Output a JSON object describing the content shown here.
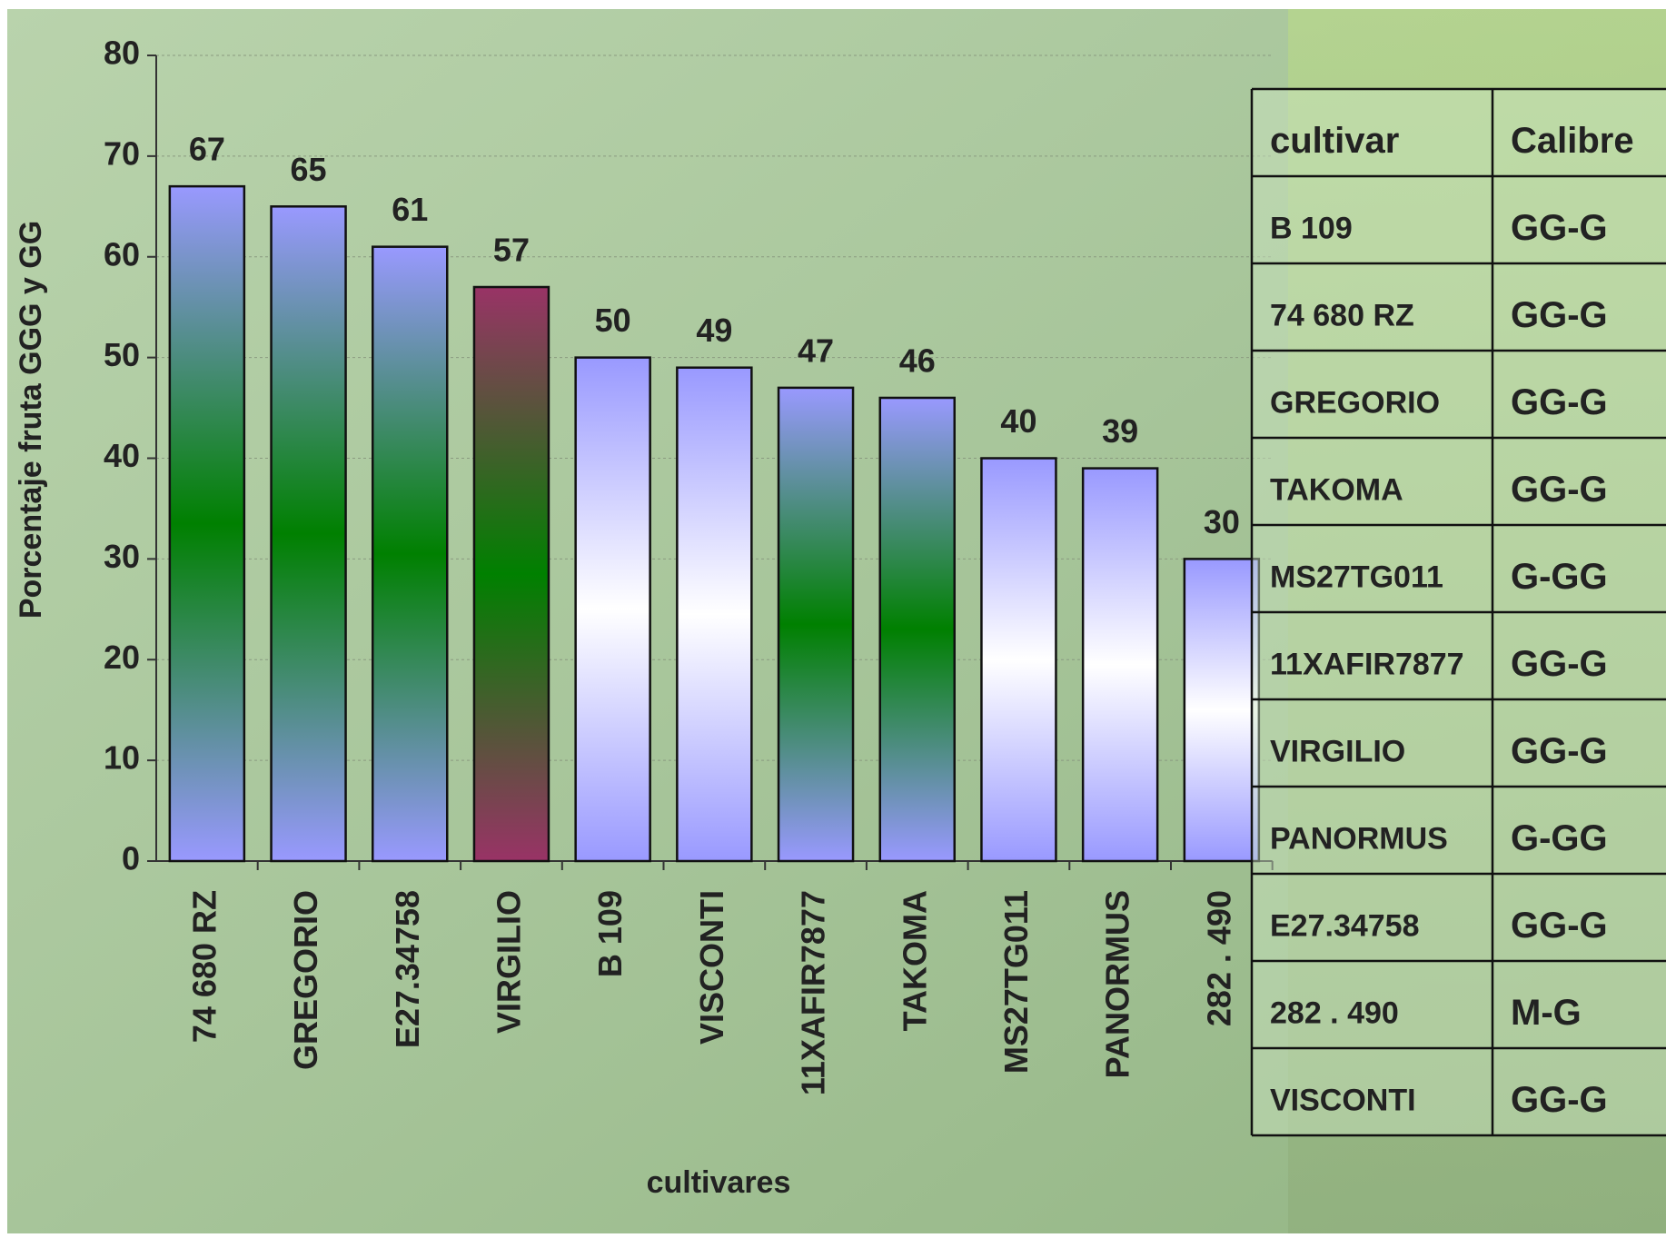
{
  "chart_data": {
    "type": "bar",
    "x_label": "cultivares",
    "y_label": "Porcentaje  fruta GGG y GG",
    "categories": [
      "74 680 RZ",
      "GREGORIO",
      "E27.34758",
      "VIRGILIO",
      "B 109",
      "VISCONTI",
      "11XAFIR7877",
      "TAKOMA",
      "MS27TG011",
      "PANORMUS",
      "282 . 490"
    ],
    "values": [
      67,
      65,
      61,
      57,
      50,
      49,
      47,
      46,
      40,
      39,
      30
    ],
    "colors": [
      [
        "#9999ff",
        "#008000"
      ],
      [
        "#9999ff",
        "#008000"
      ],
      [
        "#9999ff",
        "#008000"
      ],
      [
        "#993366",
        "#008000"
      ],
      [
        "#9999ff",
        "#ffffff"
      ],
      [
        "#9999ff",
        "#ffffff"
      ],
      [
        "#9999ff",
        "#008000"
      ],
      [
        "#9999ff",
        "#008000"
      ],
      [
        "#9999ff",
        "#ffffff"
      ],
      [
        "#9999ff",
        "#ffffff"
      ],
      [
        "#9999ff",
        "#ffffff"
      ]
    ],
    "ylim": [
      0,
      80
    ],
    "yticks": [
      0,
      10,
      20,
      30,
      40,
      50,
      60,
      70,
      80
    ],
    "grid": true
  },
  "table": {
    "header": [
      "cultivar",
      "Calibre"
    ],
    "rows": [
      [
        "B 109",
        "GG-G"
      ],
      [
        "74 680 RZ",
        "GG-G"
      ],
      [
        "GREGORIO",
        "GG-G"
      ],
      [
        "TAKOMA",
        "GG-G"
      ],
      [
        "MS27TG011",
        "G-GG"
      ],
      [
        "11XAFIR7877",
        "GG-G"
      ],
      [
        "VIRGILIO",
        "GG-G"
      ],
      [
        "PANORMUS",
        "G-GG"
      ],
      [
        "E27.34758",
        "GG-G"
      ],
      [
        "282 . 490",
        "M-G"
      ],
      [
        "VISCONTI",
        "GG-G"
      ]
    ]
  }
}
